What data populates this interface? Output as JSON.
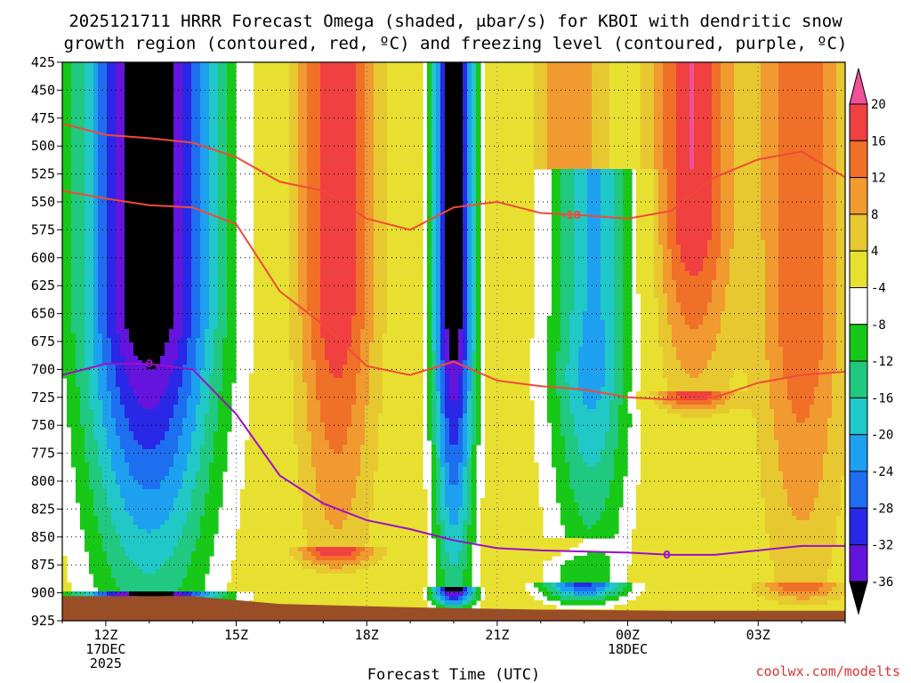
{
  "chart_data": {
    "type": "heatmap",
    "title_line1": "2025121711 HRRR Forecast Omega (shaded, μbar/s) for KBOI with dendritic snow",
    "title_line2": "growth region (contoured, red, ºC) and freezing level (contoured, purple, ºC)",
    "xlabel": "Forecast Time (UTC)",
    "credit": "coolwx.com/modelts",
    "x_ticks": [
      {
        "hour": 12,
        "label": "12Z",
        "sub1": "17DEC",
        "sub2": "2025"
      },
      {
        "hour": 15,
        "label": "15Z",
        "sub1": "",
        "sub2": ""
      },
      {
        "hour": 18,
        "label": "18Z",
        "sub1": "",
        "sub2": ""
      },
      {
        "hour": 21,
        "label": "21Z",
        "sub1": "",
        "sub2": ""
      },
      {
        "hour": 24,
        "label": "00Z",
        "sub1": "18DEC",
        "sub2": ""
      },
      {
        "hour": 27,
        "label": "03Z",
        "sub1": "",
        "sub2": ""
      }
    ],
    "xlim": [
      11,
      29
    ],
    "y_ticks": [
      425,
      450,
      475,
      500,
      525,
      550,
      575,
      600,
      625,
      650,
      675,
      700,
      725,
      750,
      775,
      800,
      825,
      850,
      875,
      900,
      925
    ],
    "ylim": [
      425,
      925
    ],
    "colorbar": {
      "labels": [
        "20",
        "16",
        "12",
        "8",
        "4",
        "-4",
        "-8",
        "-12",
        "-16",
        "-20",
        "-24",
        "-28",
        "-32",
        "-36"
      ],
      "colors": [
        "#f0509a",
        "#f04040",
        "#f07028",
        "#f09a30",
        "#e8c830",
        "#e8e030",
        "#ffffff",
        "#18c818",
        "#20c880",
        "#20c8c8",
        "#1ea0f0",
        "#1e6ef0",
        "#2828e6",
        "#6414dc",
        "#a014c8",
        "#a8a8a8",
        "#000000"
      ]
    },
    "omega_features": [
      {
        "center_hour": 13.0,
        "peak": -40,
        "p_top": 425,
        "p_bottom": 900,
        "width_h": 1.6
      },
      {
        "center_hour": 17.3,
        "peak": 20,
        "p_top": 425,
        "p_bottom": 860,
        "width_h": 0.9
      },
      {
        "center_hour": 20.0,
        "peak": -40,
        "p_top": 425,
        "p_bottom": 895,
        "width_h": 0.5
      },
      {
        "center_hour": 22.7,
        "peak": 12,
        "p_top": 425,
        "p_bottom": 850,
        "width_h": 0.8
      },
      {
        "center_hour": 23.0,
        "peak": -30,
        "p_top": 520,
        "p_bottom": 890,
        "width_h": 1.0
      },
      {
        "center_hour": 25.5,
        "peak": 20,
        "p_top": 425,
        "p_bottom": 720,
        "width_h": 0.9
      },
      {
        "center_hour": 28.0,
        "peak": 16,
        "p_top": 425,
        "p_bottom": 890,
        "width_h": 1.0
      }
    ],
    "dgz_upper": {
      "name": "-18",
      "points": [
        [
          11,
          480
        ],
        [
          12,
          490
        ],
        [
          13,
          493
        ],
        [
          14,
          497
        ],
        [
          15,
          510
        ],
        [
          16,
          532
        ],
        [
          17,
          540
        ],
        [
          18,
          565
        ],
        [
          19,
          575
        ],
        [
          20,
          555
        ],
        [
          21,
          550
        ],
        [
          22,
          560
        ],
        [
          23,
          562
        ],
        [
          24,
          565
        ],
        [
          25,
          558
        ],
        [
          26,
          528
        ],
        [
          27,
          512
        ],
        [
          28,
          505
        ],
        [
          29,
          528
        ]
      ]
    },
    "dgz_lower": {
      "points": [
        [
          11,
          540
        ],
        [
          12,
          547
        ],
        [
          13,
          553
        ],
        [
          14,
          555
        ],
        [
          15,
          570
        ],
        [
          16,
          630
        ],
        [
          17,
          660
        ],
        [
          18,
          697
        ],
        [
          19,
          705
        ],
        [
          20,
          693
        ],
        [
          21,
          710
        ],
        [
          22,
          715
        ],
        [
          23,
          718
        ],
        [
          24,
          725
        ],
        [
          25,
          727
        ],
        [
          26,
          725
        ],
        [
          27,
          712
        ],
        [
          28,
          705
        ],
        [
          29,
          702
        ]
      ]
    },
    "freezing_level": {
      "name": "0",
      "points": [
        [
          11,
          705
        ],
        [
          12,
          695
        ],
        [
          13,
          695
        ],
        [
          14,
          700
        ],
        [
          15,
          740
        ],
        [
          16,
          795
        ],
        [
          17,
          820
        ],
        [
          18,
          835
        ],
        [
          19,
          843
        ],
        [
          20,
          853
        ],
        [
          21,
          860
        ],
        [
          22,
          862
        ],
        [
          23,
          863
        ],
        [
          24,
          864
        ],
        [
          25,
          866
        ],
        [
          26,
          866
        ],
        [
          27,
          862
        ],
        [
          28,
          858
        ],
        [
          29,
          858
        ]
      ]
    }
  }
}
